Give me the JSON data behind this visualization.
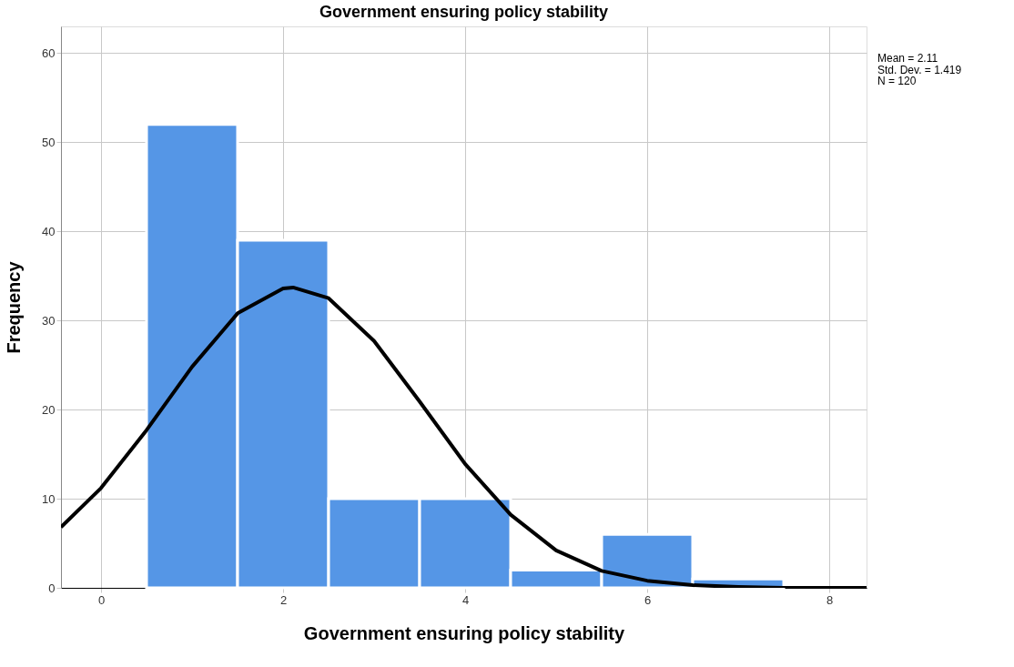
{
  "chart_data": {
    "type": "histogram",
    "title": "Government ensuring policy stability",
    "xlabel": "Government ensuring policy stability",
    "ylabel": "Frequency",
    "bins": [
      0.5,
      1.5,
      2.5,
      3.5,
      4.5,
      5.5,
      6.5,
      7.5
    ],
    "values": [
      52,
      39,
      10,
      10,
      2,
      6,
      1
    ],
    "color": "#5596e6",
    "series": [
      {
        "type": "line",
        "color": "#000000",
        "x": [
          -0.44,
          0,
          0.5,
          1,
          1.5,
          2,
          2.11,
          2.5,
          3,
          3.5,
          4,
          4.5,
          5,
          5.5,
          6,
          6.5,
          7,
          7.5,
          8,
          8.41
        ],
        "values": [
          6.8,
          11.2,
          17.7,
          24.8,
          30.8,
          33.6,
          33.7,
          32.5,
          27.7,
          20.9,
          13.9,
          8.2,
          4.2,
          1.9,
          0.8,
          0.3,
          0.1,
          0.0,
          0.0,
          0.0
        ]
      }
    ],
    "xlim": [
      -0.44,
      8.41
    ],
    "xticks": [
      0,
      2,
      4,
      6,
      8
    ],
    "ylim": [
      0,
      63
    ],
    "yticks": [
      0,
      10,
      20,
      30,
      40,
      50,
      60
    ],
    "grid": true,
    "annotations": [
      "Mean = 2.11",
      "Std. Dev. = 1.419",
      "N = 120"
    ]
  }
}
